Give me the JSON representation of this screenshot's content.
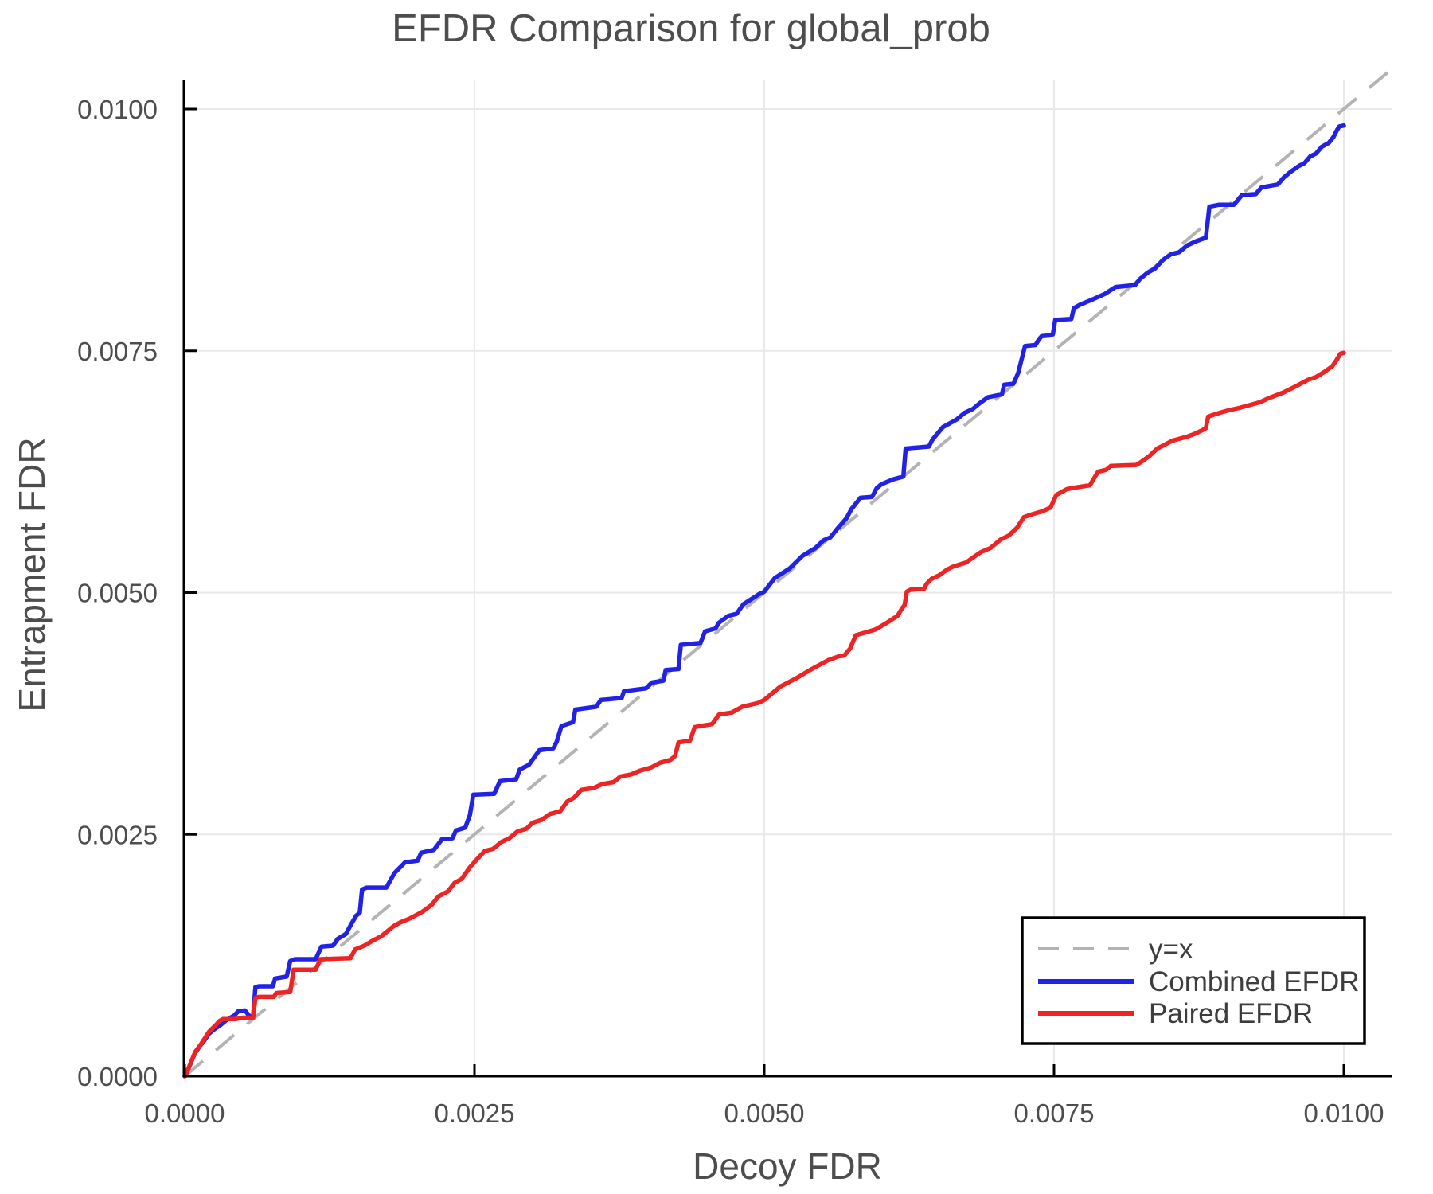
{
  "chart_data": {
    "type": "line",
    "title": "EFDR Comparison for global_prob",
    "xlabel": "Decoy FDR",
    "ylabel": "Entrapment FDR",
    "xlim": [
      0.0,
      0.0104
    ],
    "ylim": [
      0.0,
      0.0104
    ],
    "grid": true,
    "grid_color": "#e9e9e9",
    "background": "#ffffff",
    "spine_color": "#000000",
    "text_color": "#4d4d4d",
    "xticks": {
      "values": [
        0,
        25,
        50,
        75,
        100
      ],
      "labels": [
        "0.0000",
        "0.0025",
        "0.0050",
        "0.0075",
        "0.0100"
      ]
    },
    "yticks": {
      "values": [
        0,
        25,
        50,
        75,
        100
      ],
      "labels": [
        "0.0000",
        "0.0025",
        "0.0050",
        "0.0075",
        "0.0100"
      ]
    },
    "point_scale": 0.0001,
    "legend": {
      "position": "lower right",
      "items": [
        {
          "label": "y=x",
          "color": "#b3b3b3",
          "dashed": true
        },
        {
          "label": "Combined EFDR",
          "color": "#2222e6",
          "dashed": false
        },
        {
          "label": "Paired EFDR",
          "color": "#ee2424",
          "dashed": false
        }
      ]
    },
    "series": [
      {
        "name": "y=x",
        "style": "dashed",
        "color": "#b3b3b3",
        "width": 4,
        "points": [
          [
            0,
            0
          ],
          [
            103.8,
            103.8
          ]
        ]
      },
      {
        "name": "Combined EFDR",
        "style": "solid",
        "color": "#2222e6",
        "width": 5.5,
        "points": [
          [
            0,
            0
          ],
          [
            0.2,
            0.4
          ],
          [
            0.5,
            1.3
          ],
          [
            0.9,
            2.4
          ],
          [
            1.3,
            3.1
          ],
          [
            1.7,
            3.7
          ],
          [
            2.1,
            4.4
          ],
          [
            2.6,
            4.9
          ],
          [
            3.1,
            5.3
          ],
          [
            3.6,
            5.8
          ],
          [
            4.3,
            6.3
          ],
          [
            4.6,
            6.7
          ],
          [
            5.2,
            6.8
          ],
          [
            5.6,
            6.2
          ],
          [
            5.9,
            6.15
          ],
          [
            6.1,
            9.2
          ],
          [
            6.4,
            9.3
          ],
          [
            7.6,
            9.3
          ],
          [
            7.8,
            10.1
          ],
          [
            8.8,
            10.3
          ],
          [
            9.1,
            11.9
          ],
          [
            9.5,
            12.1
          ],
          [
            11.3,
            12.1
          ],
          [
            11.8,
            13.4
          ],
          [
            12.8,
            13.5
          ],
          [
            13.2,
            14.2
          ],
          [
            13.9,
            14.7
          ],
          [
            14.4,
            15.8
          ],
          [
            14.8,
            16.6
          ],
          [
            15.1,
            16.9
          ],
          [
            15.3,
            19.3
          ],
          [
            15.7,
            19.5
          ],
          [
            17.4,
            19.5
          ],
          [
            18.1,
            21.0
          ],
          [
            19.0,
            22.1
          ],
          [
            20.1,
            22.3
          ],
          [
            20.4,
            23.1
          ],
          [
            21.5,
            23.4
          ],
          [
            22.2,
            24.5
          ],
          [
            23.1,
            24.6
          ],
          [
            23.4,
            25.4
          ],
          [
            24.2,
            25.7
          ],
          [
            24.6,
            27.0
          ],
          [
            24.9,
            29.1
          ],
          [
            26.7,
            29.2
          ],
          [
            27.2,
            30.5
          ],
          [
            28.6,
            30.7
          ],
          [
            28.9,
            31.7
          ],
          [
            29.7,
            32.2
          ],
          [
            30.6,
            33.7
          ],
          [
            31.8,
            33.9
          ],
          [
            32.1,
            34.6
          ],
          [
            32.5,
            36.2
          ],
          [
            33.5,
            36.6
          ],
          [
            33.7,
            37.9
          ],
          [
            35.5,
            38.2
          ],
          [
            35.9,
            38.9
          ],
          [
            37.7,
            39.1
          ],
          [
            37.9,
            39.8
          ],
          [
            39.8,
            40.1
          ],
          [
            40.3,
            40.7
          ],
          [
            41.3,
            40.9
          ],
          [
            41.5,
            42.0
          ],
          [
            42.6,
            42.1
          ],
          [
            42.8,
            44.6
          ],
          [
            44.5,
            44.8
          ],
          [
            44.9,
            46.0
          ],
          [
            45.8,
            46.3
          ],
          [
            46.1,
            46.9
          ],
          [
            46.9,
            47.6
          ],
          [
            47.6,
            47.8
          ],
          [
            48.2,
            48.8
          ],
          [
            49.5,
            49.8
          ],
          [
            50.0,
            50.1
          ],
          [
            50.9,
            51.5
          ],
          [
            52.2,
            52.5
          ],
          [
            53.3,
            53.8
          ],
          [
            54.4,
            54.6
          ],
          [
            55.1,
            55.4
          ],
          [
            55.7,
            55.7
          ],
          [
            56.3,
            56.6
          ],
          [
            57.1,
            57.7
          ],
          [
            57.5,
            58.6
          ],
          [
            58.3,
            59.8
          ],
          [
            59.3,
            59.9
          ],
          [
            59.7,
            60.8
          ],
          [
            60.1,
            61.2
          ],
          [
            61.1,
            61.7
          ],
          [
            62.0,
            62.0
          ],
          [
            62.2,
            64.9
          ],
          [
            64.2,
            65.1
          ],
          [
            64.5,
            65.8
          ],
          [
            65.4,
            67.1
          ],
          [
            66.6,
            67.9
          ],
          [
            67.3,
            68.6
          ],
          [
            68.0,
            69.0
          ],
          [
            68.6,
            69.6
          ],
          [
            69.3,
            70.2
          ],
          [
            70.5,
            70.5
          ],
          [
            70.7,
            71.5
          ],
          [
            71.5,
            71.6
          ],
          [
            71.9,
            72.7
          ],
          [
            72.2,
            74.1
          ],
          [
            72.5,
            75.5
          ],
          [
            73.4,
            75.6
          ],
          [
            73.7,
            76.2
          ],
          [
            74.0,
            76.6
          ],
          [
            74.9,
            76.7
          ],
          [
            75.1,
            78.2
          ],
          [
            76.5,
            78.3
          ],
          [
            76.7,
            79.4
          ],
          [
            77.3,
            79.8
          ],
          [
            78.3,
            80.3
          ],
          [
            79.4,
            80.9
          ],
          [
            80.3,
            81.6
          ],
          [
            82.0,
            81.8
          ],
          [
            82.4,
            82.4
          ],
          [
            83.1,
            83.1
          ],
          [
            83.7,
            83.5
          ],
          [
            84.4,
            84.4
          ],
          [
            85.1,
            85.0
          ],
          [
            85.8,
            85.2
          ],
          [
            86.5,
            85.9
          ],
          [
            87.2,
            86.3
          ],
          [
            88.1,
            86.7
          ],
          [
            88.4,
            89.9
          ],
          [
            89.2,
            90.1
          ],
          [
            90.5,
            90.1
          ],
          [
            90.8,
            90.5
          ],
          [
            91.2,
            91.1
          ],
          [
            92.4,
            91.2
          ],
          [
            92.9,
            91.9
          ],
          [
            94.3,
            92.2
          ],
          [
            94.8,
            92.9
          ],
          [
            95.4,
            93.5
          ],
          [
            96.1,
            94.1
          ],
          [
            96.6,
            94.4
          ],
          [
            97.1,
            95.1
          ],
          [
            97.6,
            95.4
          ],
          [
            98.1,
            96.1
          ],
          [
            98.7,
            96.5
          ],
          [
            99.1,
            97.1
          ],
          [
            99.4,
            97.8
          ],
          [
            99.6,
            98.2
          ],
          [
            100,
            98.3
          ]
        ]
      },
      {
        "name": "Paired EFDR",
        "style": "solid",
        "color": "#ee2424",
        "width": 5.5,
        "points": [
          [
            0,
            0
          ],
          [
            0.2,
            0.45
          ],
          [
            0.5,
            1.3
          ],
          [
            0.9,
            2.5
          ],
          [
            1.4,
            3.3
          ],
          [
            2.1,
            4.6
          ],
          [
            2.7,
            5.3
          ],
          [
            3.0,
            5.7
          ],
          [
            3.3,
            5.9
          ],
          [
            4.4,
            5.9
          ],
          [
            5.0,
            6.05
          ],
          [
            5.9,
            6.05
          ],
          [
            6.1,
            8.1
          ],
          [
            6.4,
            8.2
          ],
          [
            7.7,
            8.2
          ],
          [
            7.9,
            8.6
          ],
          [
            9.1,
            8.7
          ],
          [
            9.4,
            11.0
          ],
          [
            11.3,
            11.0
          ],
          [
            11.7,
            12.1
          ],
          [
            14.3,
            12.2
          ],
          [
            14.7,
            13.1
          ],
          [
            15.5,
            13.5
          ],
          [
            16.2,
            14.0
          ],
          [
            17.0,
            14.5
          ],
          [
            18.0,
            15.5
          ],
          [
            18.6,
            15.9
          ],
          [
            19.4,
            16.3
          ],
          [
            20.5,
            17.0
          ],
          [
            21.3,
            17.7
          ],
          [
            21.9,
            18.6
          ],
          [
            22.7,
            19.1
          ],
          [
            23.3,
            20.0
          ],
          [
            23.9,
            20.4
          ],
          [
            24.6,
            21.6
          ],
          [
            25.2,
            22.4
          ],
          [
            25.9,
            23.3
          ],
          [
            26.6,
            23.5
          ],
          [
            27.3,
            24.2
          ],
          [
            28.0,
            24.6
          ],
          [
            28.7,
            25.3
          ],
          [
            29.5,
            25.6
          ],
          [
            30.0,
            26.2
          ],
          [
            30.8,
            26.5
          ],
          [
            31.5,
            27.1
          ],
          [
            32.4,
            27.4
          ],
          [
            33.0,
            28.4
          ],
          [
            33.6,
            28.8
          ],
          [
            34.2,
            29.6
          ],
          [
            35.3,
            29.8
          ],
          [
            36.0,
            30.2
          ],
          [
            37.0,
            30.4
          ],
          [
            37.6,
            31.0
          ],
          [
            38.5,
            31.2
          ],
          [
            39.3,
            31.6
          ],
          [
            40.2,
            31.9
          ],
          [
            41.0,
            32.4
          ],
          [
            41.9,
            32.7
          ],
          [
            42.3,
            33.1
          ],
          [
            42.6,
            34.5
          ],
          [
            43.6,
            34.7
          ],
          [
            44.0,
            36.1
          ],
          [
            45.5,
            36.4
          ],
          [
            46.1,
            37.4
          ],
          [
            47.2,
            37.6
          ],
          [
            48.1,
            38.2
          ],
          [
            49.5,
            38.6
          ],
          [
            50.0,
            38.9
          ],
          [
            50.8,
            39.7
          ],
          [
            51.4,
            40.3
          ],
          [
            52.7,
            41.1
          ],
          [
            54.1,
            42.1
          ],
          [
            55.5,
            43.0
          ],
          [
            56.4,
            43.4
          ],
          [
            56.9,
            43.5
          ],
          [
            57.4,
            44.2
          ],
          [
            57.9,
            45.6
          ],
          [
            58.8,
            45.9
          ],
          [
            59.6,
            46.2
          ],
          [
            60.6,
            46.9
          ],
          [
            61.5,
            47.6
          ],
          [
            61.9,
            48.4
          ],
          [
            62.1,
            48.7
          ],
          [
            62.3,
            50.1
          ],
          [
            62.6,
            50.3
          ],
          [
            63.8,
            50.4
          ],
          [
            64.0,
            50.9
          ],
          [
            64.4,
            51.4
          ],
          [
            65.1,
            51.8
          ],
          [
            65.8,
            52.4
          ],
          [
            66.3,
            52.7
          ],
          [
            67.4,
            53.1
          ],
          [
            68.1,
            53.7
          ],
          [
            68.7,
            54.2
          ],
          [
            69.5,
            54.6
          ],
          [
            70.4,
            55.5
          ],
          [
            71.1,
            55.9
          ],
          [
            71.8,
            56.7
          ],
          [
            72.4,
            57.8
          ],
          [
            73.1,
            58.1
          ],
          [
            74.0,
            58.4
          ],
          [
            74.7,
            58.8
          ],
          [
            75.2,
            60.1
          ],
          [
            76.1,
            60.7
          ],
          [
            77.0,
            60.9
          ],
          [
            78.1,
            61.1
          ],
          [
            78.8,
            62.5
          ],
          [
            79.5,
            62.7
          ],
          [
            79.9,
            63.1
          ],
          [
            82.1,
            63.2
          ],
          [
            82.5,
            63.5
          ],
          [
            83.2,
            64.1
          ],
          [
            83.9,
            64.9
          ],
          [
            84.4,
            65.2
          ],
          [
            85.2,
            65.7
          ],
          [
            86.4,
            66.1
          ],
          [
            87.1,
            66.4
          ],
          [
            87.8,
            66.8
          ],
          [
            88.1,
            67.0
          ],
          [
            88.3,
            68.2
          ],
          [
            88.8,
            68.4
          ],
          [
            89.6,
            68.7
          ],
          [
            90.2,
            68.9
          ],
          [
            91.0,
            69.1
          ],
          [
            91.6,
            69.3
          ],
          [
            92.8,
            69.7
          ],
          [
            93.5,
            70.1
          ],
          [
            94.8,
            70.7
          ],
          [
            95.8,
            71.3
          ],
          [
            96.9,
            72.0
          ],
          [
            97.6,
            72.3
          ],
          [
            98.3,
            72.8
          ],
          [
            99.0,
            73.4
          ],
          [
            99.4,
            74.1
          ],
          [
            99.7,
            74.7
          ],
          [
            100,
            74.8
          ]
        ]
      }
    ]
  }
}
